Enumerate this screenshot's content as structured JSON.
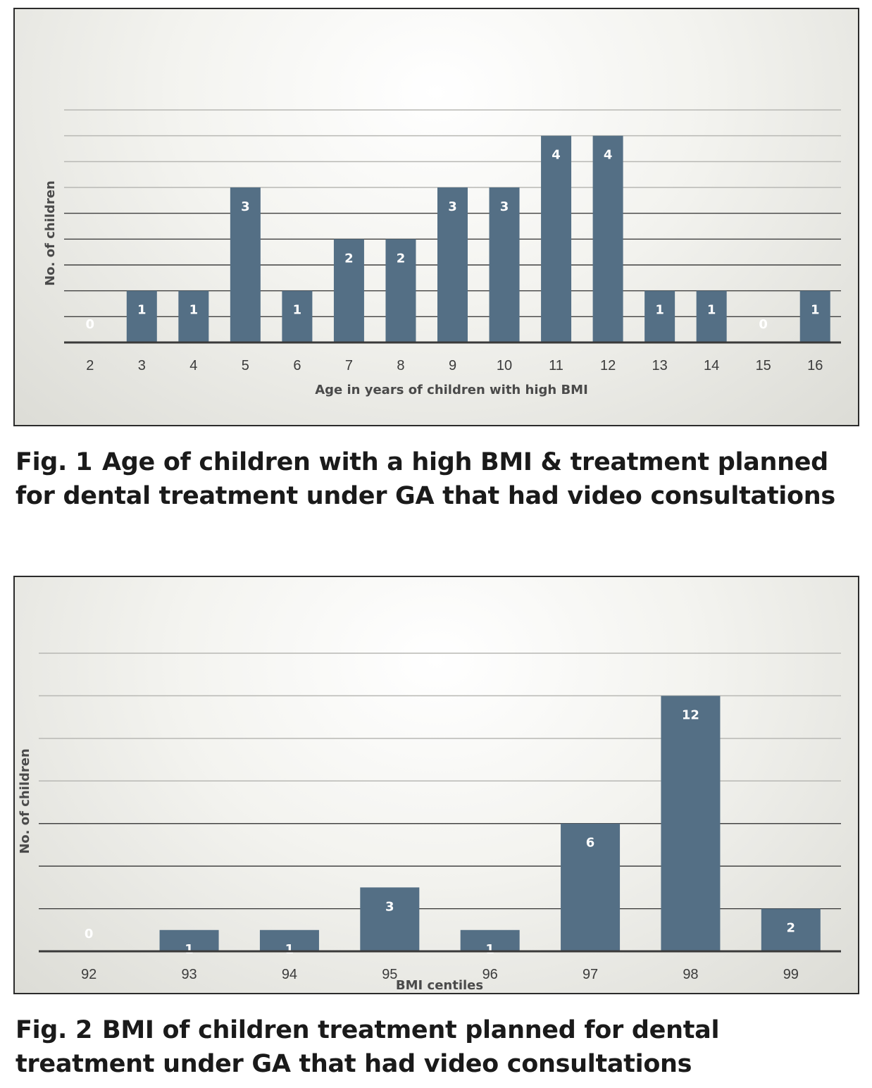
{
  "colors": {
    "bar": "#546f85",
    "gridline": "#b8b8b4",
    "axis": "#3a3a3a"
  },
  "chart_data": [
    {
      "type": "bar",
      "categories": [
        "2",
        "3",
        "4",
        "5",
        "6",
        "7",
        "8",
        "9",
        "10",
        "11",
        "12",
        "13",
        "14",
        "15",
        "16"
      ],
      "values": [
        0,
        1,
        1,
        3,
        1,
        2,
        2,
        3,
        3,
        4,
        4,
        1,
        1,
        0,
        1
      ],
      "xlabel": "Age in years of children with high BMI",
      "ylabel": "No. of children",
      "ylim": [
        0,
        4.5
      ],
      "grid": true,
      "data_labels": true
    },
    {
      "type": "bar",
      "categories": [
        "92",
        "93",
        "94",
        "95",
        "96",
        "97",
        "98",
        "99"
      ],
      "values": [
        0,
        1,
        1,
        3,
        1,
        6,
        12,
        2
      ],
      "xlabel": "BMI centiles",
      "ylabel": "No. of children",
      "ylim": [
        0,
        14
      ],
      "grid": true,
      "data_labels": true
    }
  ],
  "captions": [
    {
      "fig": "Fig. 1",
      "text": "Age of children with a high BMI & treatment planned for dental treatment under GA that had video consultations"
    },
    {
      "fig": "Fig. 2",
      "text": "BMI of children treatment planned for dental treatment under GA that had video consultations"
    }
  ]
}
